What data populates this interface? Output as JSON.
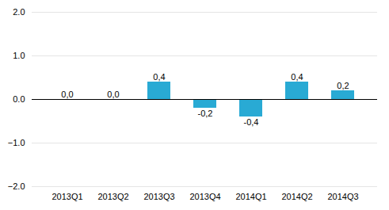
{
  "chart_data": {
    "type": "bar",
    "categories": [
      "2013Q1",
      "2013Q2",
      "2013Q3",
      "2013Q4",
      "2014Q1",
      "2014Q2",
      "2014Q3"
    ],
    "values": [
      0.0,
      0.0,
      0.4,
      -0.2,
      -0.4,
      0.4,
      0.2
    ],
    "value_labels": [
      "0,0",
      "0,0",
      "0,4",
      "-0,2",
      "-0,4",
      "0,4",
      "0,2"
    ],
    "data_labels": true,
    "color": "#29aad4",
    "ylim": [
      -2,
      2
    ],
    "yticks": [
      -2,
      -1,
      0,
      1,
      2
    ],
    "grid": true
  }
}
